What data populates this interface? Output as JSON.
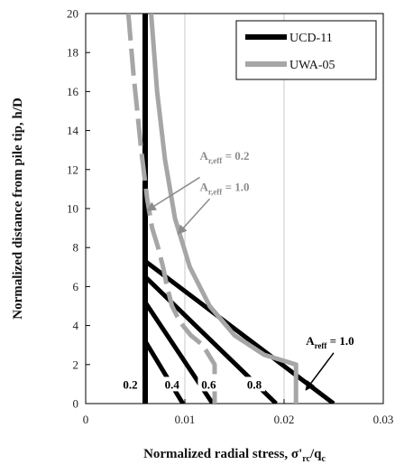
{
  "chart_data": {
    "type": "line",
    "xlabel": {
      "main": "Normalized radial stress, σ'",
      "sub1": "rc",
      "mid": "/q",
      "sub2": "c"
    },
    "ylabel": "Normalized distance from pile tip, h/D",
    "xlim": [
      0,
      0.03
    ],
    "ylim": [
      0,
      20
    ],
    "xticks": [
      {
        "value": 0,
        "label": "0"
      },
      {
        "value": 0.01,
        "label": "0.01"
      },
      {
        "value": 0.02,
        "label": "0.02"
      },
      {
        "value": 0.03,
        "label": "0.03"
      }
    ],
    "yticks": [
      {
        "value": 0,
        "label": "0"
      },
      {
        "value": 2,
        "label": "2"
      },
      {
        "value": 4,
        "label": "4"
      },
      {
        "value": 6,
        "label": "6"
      },
      {
        "value": 8,
        "label": "8"
      },
      {
        "value": 10,
        "label": "10"
      },
      {
        "value": 12,
        "label": "12"
      },
      {
        "value": 14,
        "label": "14"
      },
      {
        "value": 16,
        "label": "16"
      },
      {
        "value": 18,
        "label": "18"
      },
      {
        "value": 20,
        "label": "20"
      }
    ],
    "grid": "vertical",
    "legend": {
      "position": "top-right",
      "entries": [
        {
          "name": "UCD-11",
          "color": "#000000"
        },
        {
          "name": "UWA-05",
          "color": "#a6a6a6"
        }
      ]
    },
    "series": [
      {
        "name": "UCD-11",
        "color": "#000000",
        "style": "solid",
        "width": 6,
        "x": [
          0.006,
          0.006
        ],
        "y": [
          0,
          20
        ]
      },
      {
        "name": "UCD-11 Areff 0.4",
        "color": "#000000",
        "style": "solid",
        "width": 5,
        "x": [
          0.006,
          0.0098
        ],
        "y": [
          3.2,
          0
        ]
      },
      {
        "name": "UCD-11 Areff 0.6",
        "color": "#000000",
        "style": "solid",
        "width": 5,
        "x": [
          0.006,
          0.0128
        ],
        "y": [
          5.2,
          0
        ]
      },
      {
        "name": "UCD-11 Areff 0.8",
        "color": "#000000",
        "style": "solid",
        "width": 5,
        "x": [
          0.006,
          0.0192
        ],
        "y": [
          6.5,
          0
        ]
      },
      {
        "name": "UCD-11 Areff 1.0",
        "color": "#000000",
        "style": "solid",
        "width": 5,
        "x": [
          0.006,
          0.025
        ],
        "y": [
          7.3,
          0
        ]
      },
      {
        "name": "UWA-05 Ar,eff 1.0",
        "color": "#a6a6a6",
        "style": "solid",
        "width": 5,
        "x": [
          0.0066,
          0.0072,
          0.008,
          0.009,
          0.0105,
          0.0125,
          0.015,
          0.018,
          0.0212,
          0.0212
        ],
        "y": [
          20,
          16,
          12.5,
          9.5,
          7,
          5,
          3.5,
          2.5,
          2,
          0
        ]
      },
      {
        "name": "UWA-05 Ar,eff 0.2",
        "color": "#a6a6a6",
        "style": "dashed",
        "width": 5,
        "x": [
          0.0043,
          0.0048,
          0.0056,
          0.0062,
          0.0067,
          0.0073,
          0.0078,
          0.0082,
          0.0087,
          0.0092,
          0.0098,
          0.0106,
          0.0118,
          0.013,
          0.013
        ],
        "y": [
          20,
          17,
          13,
          10.5,
          9,
          8,
          7,
          6,
          5,
          4.5,
          4,
          3.5,
          3,
          2,
          0
        ]
      }
    ],
    "annotations": [
      {
        "label_main": "A",
        "label_sub": "r,eff",
        "label_eq": " = 0.2",
        "color": "#a6a6a6",
        "x": 0.0115,
        "y": 12.5,
        "arrow_from": [
          0.0115,
          11.6
        ],
        "arrow_to": [
          0.0062,
          9.9
        ]
      },
      {
        "label_main": "A",
        "label_sub": "r,eff",
        "label_eq": " = 1.0",
        "color": "#a6a6a6",
        "x": 0.0115,
        "y": 10.9,
        "arrow_from": [
          0.0125,
          10.5
        ],
        "arrow_to": [
          0.0093,
          8.7
        ]
      },
      {
        "label_main": "A",
        "label_sub": "reff",
        "label_eq": " = 1.0",
        "color": "#000000",
        "x": 0.0222,
        "y": 3.0,
        "arrow_from": [
          0.025,
          2.6
        ],
        "arrow_to": [
          0.0222,
          0.7
        ]
      }
    ],
    "line_labels": [
      {
        "text": "0.2",
        "x": 0.0045,
        "y": 1.0
      },
      {
        "text": "0.4",
        "x": 0.0087,
        "y": 1.0
      },
      {
        "text": "0.6",
        "x": 0.0124,
        "y": 1.0
      },
      {
        "text": "0.8",
        "x": 0.017,
        "y": 1.0
      }
    ]
  }
}
